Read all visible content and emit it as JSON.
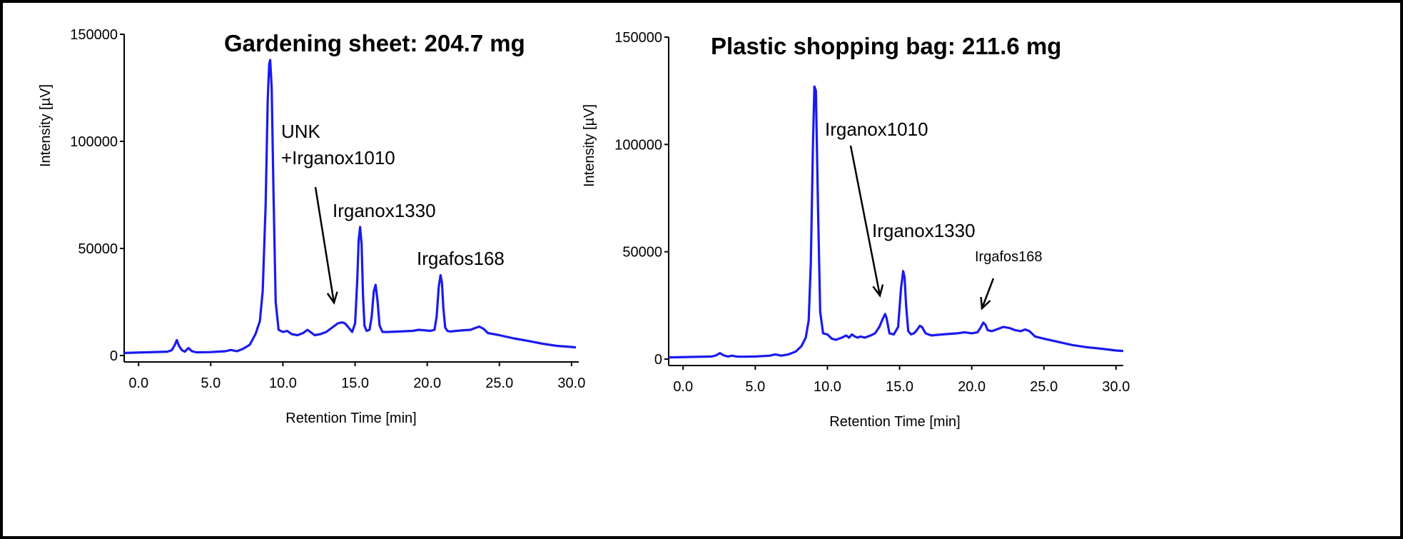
{
  "colors": {
    "trace": "#1a1aee",
    "axis": "#000000",
    "background": "#ffffff"
  },
  "chart_data": [
    {
      "type": "line",
      "title": "Gardening sheet: 204.7 mg",
      "xlabel": "Retention Time [min]",
      "ylabel": "Intensity [µV]",
      "xlim": [
        -1.0,
        30.5
      ],
      "ylim": [
        -3000,
        150000
      ],
      "xticks": [
        "0.0",
        "5.0",
        "10.0",
        "15.0",
        "20.0",
        "25.0",
        "30.0"
      ],
      "yticks": [
        "0",
        "50000",
        "100000",
        "150000"
      ],
      "grid": false,
      "annotations": [
        {
          "label": "UNK",
          "label2": "+Irganox1010",
          "target": [
            14.2,
            23000
          ]
        },
        {
          "label": "Irganox1330"
        },
        {
          "label": "Irgafos168"
        }
      ],
      "series": [
        {
          "x": [
            -1.0,
            2.0,
            2.3,
            2.5,
            2.65,
            2.8,
            3.0,
            3.2,
            3.45,
            3.7,
            4.0,
            5.0,
            6.0,
            6.4,
            6.8,
            7.2,
            7.7,
            8.1,
            8.4,
            8.6,
            8.8,
            8.95,
            9.05,
            9.12,
            9.22,
            9.35,
            9.5,
            9.7,
            10.0,
            10.3,
            10.6,
            11.0,
            11.4,
            11.7,
            11.9,
            12.2,
            12.6,
            13.0,
            13.4,
            13.8,
            14.1,
            14.3,
            14.5,
            14.8,
            15.0,
            15.15,
            15.25,
            15.35,
            15.45,
            15.55,
            15.65,
            15.8,
            16.0,
            16.15,
            16.3,
            16.42,
            16.55,
            16.7,
            16.9,
            17.3,
            18.0,
            19.0,
            19.4,
            19.8,
            20.2,
            20.5,
            20.65,
            20.8,
            20.92,
            21.02,
            21.12,
            21.25,
            21.4,
            21.6,
            22.0,
            22.5,
            23.0,
            23.3,
            23.6,
            23.9,
            24.2,
            24.6,
            25.0,
            26.0,
            27.0,
            28.0,
            29.0,
            30.0,
            30.3
          ],
          "y": [
            1200,
            1800,
            2500,
            4800,
            7200,
            4500,
            2500,
            1800,
            3500,
            2000,
            1500,
            1600,
            2000,
            2600,
            2000,
            3000,
            5000,
            10000,
            16000,
            30000,
            70000,
            120000,
            136000,
            138000,
            125000,
            75000,
            25000,
            12000,
            11000,
            11500,
            10000,
            9500,
            10500,
            12000,
            11000,
            9500,
            10000,
            11000,
            13000,
            15000,
            15500,
            15000,
            13500,
            11000,
            15000,
            35000,
            54000,
            60000,
            52000,
            28000,
            14000,
            11500,
            12000,
            18000,
            30000,
            33000,
            26000,
            14000,
            11000,
            11000,
            11200,
            11500,
            12000,
            11800,
            11500,
            12000,
            18000,
            32000,
            37500,
            34000,
            22000,
            13000,
            11500,
            11200,
            11500,
            11800,
            12000,
            12800,
            13500,
            12500,
            10500,
            10000,
            9500,
            8000,
            6800,
            5500,
            4500,
            4000,
            3800
          ]
        }
      ]
    },
    {
      "type": "line",
      "title": "Plastic shopping bag: 211.6 mg",
      "xlabel": "Retention Time [min]",
      "ylabel": "Intensity [µV]",
      "xlim": [
        -1.0,
        30.5
      ],
      "ylim": [
        -3000,
        150000
      ],
      "xticks": [
        "0.0",
        "5.0",
        "10.0",
        "15.0",
        "20.0",
        "25.0",
        "30.0"
      ],
      "yticks": [
        "0",
        "50000",
        "100000",
        "150000"
      ],
      "grid": false,
      "annotations": [
        {
          "label": "Irganox1010",
          "target": [
            14.0,
            27000
          ]
        },
        {
          "label": "Irganox1330"
        },
        {
          "label": "Irgafos168",
          "target": [
            20.8,
            22000
          ]
        }
      ],
      "series": [
        {
          "x": [
            -1.0,
            2.0,
            2.3,
            2.55,
            2.8,
            3.1,
            3.4,
            3.7,
            4.0,
            5.0,
            6.0,
            6.4,
            6.8,
            7.3,
            7.8,
            8.2,
            8.5,
            8.7,
            8.85,
            9.0,
            9.1,
            9.2,
            9.35,
            9.5,
            9.7,
            10.0,
            10.3,
            10.6,
            11.0,
            11.3,
            11.5,
            11.7,
            11.9,
            12.1,
            12.3,
            12.6,
            13.0,
            13.3,
            13.6,
            13.85,
            14.0,
            14.1,
            14.3,
            14.6,
            14.9,
            15.1,
            15.25,
            15.35,
            15.45,
            15.6,
            15.8,
            16.0,
            16.2,
            16.4,
            16.55,
            16.8,
            17.2,
            18.0,
            19.0,
            19.5,
            20.0,
            20.4,
            20.65,
            20.8,
            20.95,
            21.1,
            21.4,
            21.8,
            22.2,
            22.6,
            23.0,
            23.4,
            23.7,
            24.0,
            24.4,
            25.0,
            26.0,
            27.0,
            28.0,
            29.0,
            30.0,
            30.5
          ],
          "y": [
            800,
            1200,
            1800,
            2800,
            1800,
            1200,
            1600,
            1200,
            1100,
            1200,
            1600,
            2200,
            1600,
            2200,
            3500,
            6000,
            10000,
            18000,
            45000,
            100000,
            127000,
            125000,
            70000,
            22000,
            12000,
            11500,
            9500,
            9000,
            10000,
            11000,
            10000,
            11500,
            10500,
            10000,
            10500,
            10000,
            11000,
            12000,
            15000,
            19000,
            21000,
            19000,
            12000,
            11500,
            15000,
            33000,
            41000,
            38000,
            25000,
            13000,
            11500,
            12000,
            13500,
            15500,
            15000,
            12000,
            11000,
            11500,
            12000,
            12500,
            12000,
            12500,
            15000,
            17000,
            16000,
            13500,
            13000,
            14000,
            15000,
            14500,
            13500,
            13000,
            13800,
            13000,
            10500,
            9500,
            8000,
            6500,
            5500,
            4800,
            4000,
            3800
          ]
        }
      ]
    }
  ]
}
